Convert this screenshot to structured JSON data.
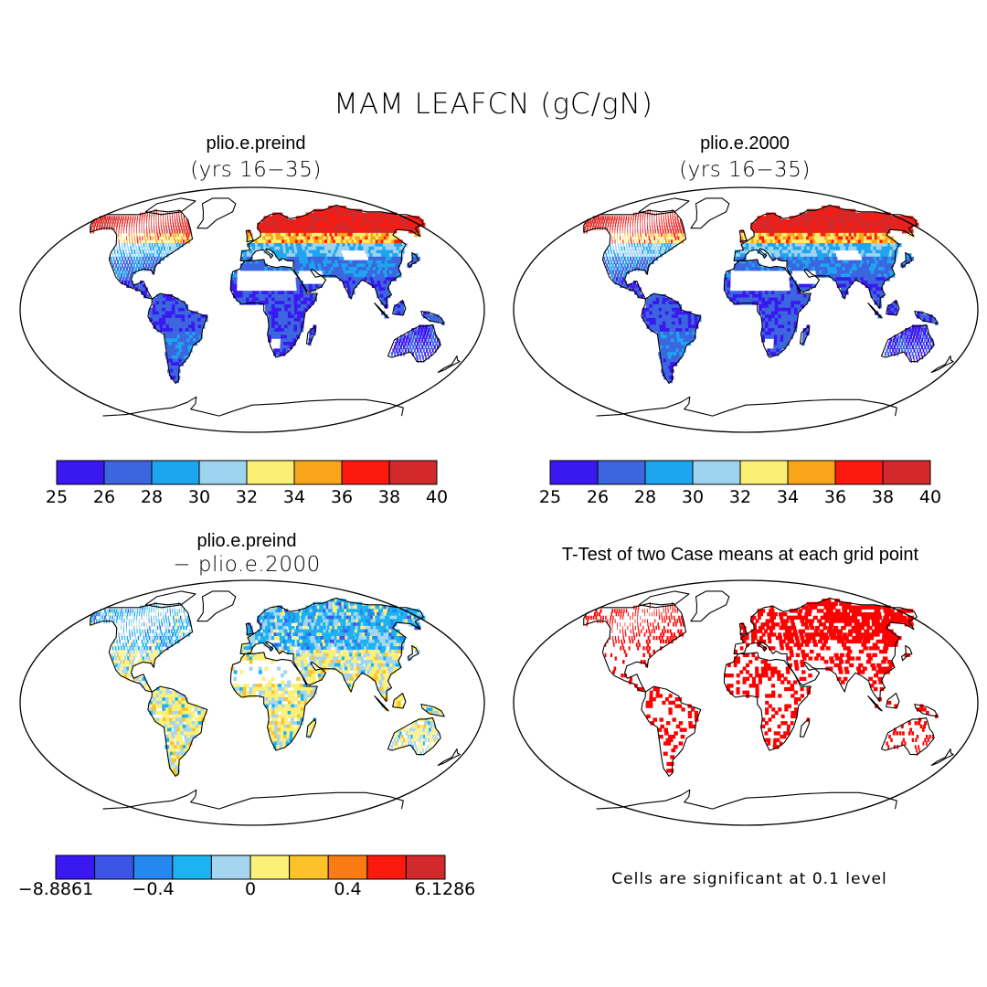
{
  "figure_title": "MAM LEAFCN (gC/gN)",
  "panels": [
    {
      "id": "a",
      "title": "plio.e.preind",
      "subtitle": "(yrs 16−35)"
    },
    {
      "id": "b",
      "title": "plio.e.2000",
      "subtitle": "(yrs 16−35)"
    },
    {
      "id": "c",
      "title": "plio.e.preind",
      "subtitle": "− plio.e.2000"
    },
    {
      "id": "d",
      "title": "T-Test of two Case means at each grid point",
      "subtitle": ""
    }
  ],
  "colorbar_abs": {
    "colors": [
      "#3a18f0",
      "#3c66df",
      "#1ea5ef",
      "#9ed3ef",
      "#faef72",
      "#f9a51c",
      "#fc1a0f",
      "#d22a2c"
    ],
    "labels": [
      "25",
      "26",
      "28",
      "30",
      "32",
      "34",
      "36",
      "38",
      "40"
    ]
  },
  "colorbar_diff": {
    "colors": [
      "#3a18f0",
      "#3c55e6",
      "#2488ef",
      "#1cb3f2",
      "#a6d6ef",
      "#faf07a",
      "#fbc22a",
      "#f97b14",
      "#fc1a0f",
      "#d22a2c"
    ],
    "labels": [
      "−8.8861",
      "−0.4",
      "0",
      "0.4",
      "6.1286"
    ]
  },
  "significance_color": "#ff0000",
  "note": "Cells are significant at 0.1 level",
  "chart_data": [
    {
      "type": "heatmap",
      "title": "plio.e.preind (yrs 16−35)",
      "variable": "MAM LEAFCN",
      "units": "gC/gN",
      "levels": [
        25,
        26,
        28,
        30,
        32,
        34,
        36,
        38,
        40
      ],
      "regions": {
        "boreal_north": "36-40",
        "mid_latitudes": "28-32",
        "tropics": "25-28",
        "australia": "25-26"
      }
    },
    {
      "type": "heatmap",
      "title": "plio.e.2000 (yrs 16−35)",
      "variable": "MAM LEAFCN",
      "units": "gC/gN",
      "levels": [
        25,
        26,
        28,
        30,
        32,
        34,
        36,
        38,
        40
      ],
      "regions": {
        "boreal_north": "36-40",
        "mid_latitudes": "28-32",
        "tropics": "25-28",
        "australia": "25-26"
      }
    },
    {
      "type": "heatmap",
      "title": "plio.e.preind − plio.e.2000",
      "levels": [
        "−8.8861",
        "−0.4",
        "0",
        "0.4",
        "6.1286"
      ],
      "regions": {
        "boreal_north": "−0.4 to 0",
        "tropics": "0 to 0.4",
        "australia": "0 to 0.4"
      }
    },
    {
      "type": "heatmap",
      "title": "T-Test of two Case means at each grid point",
      "significance_level": 0.1
    }
  ]
}
